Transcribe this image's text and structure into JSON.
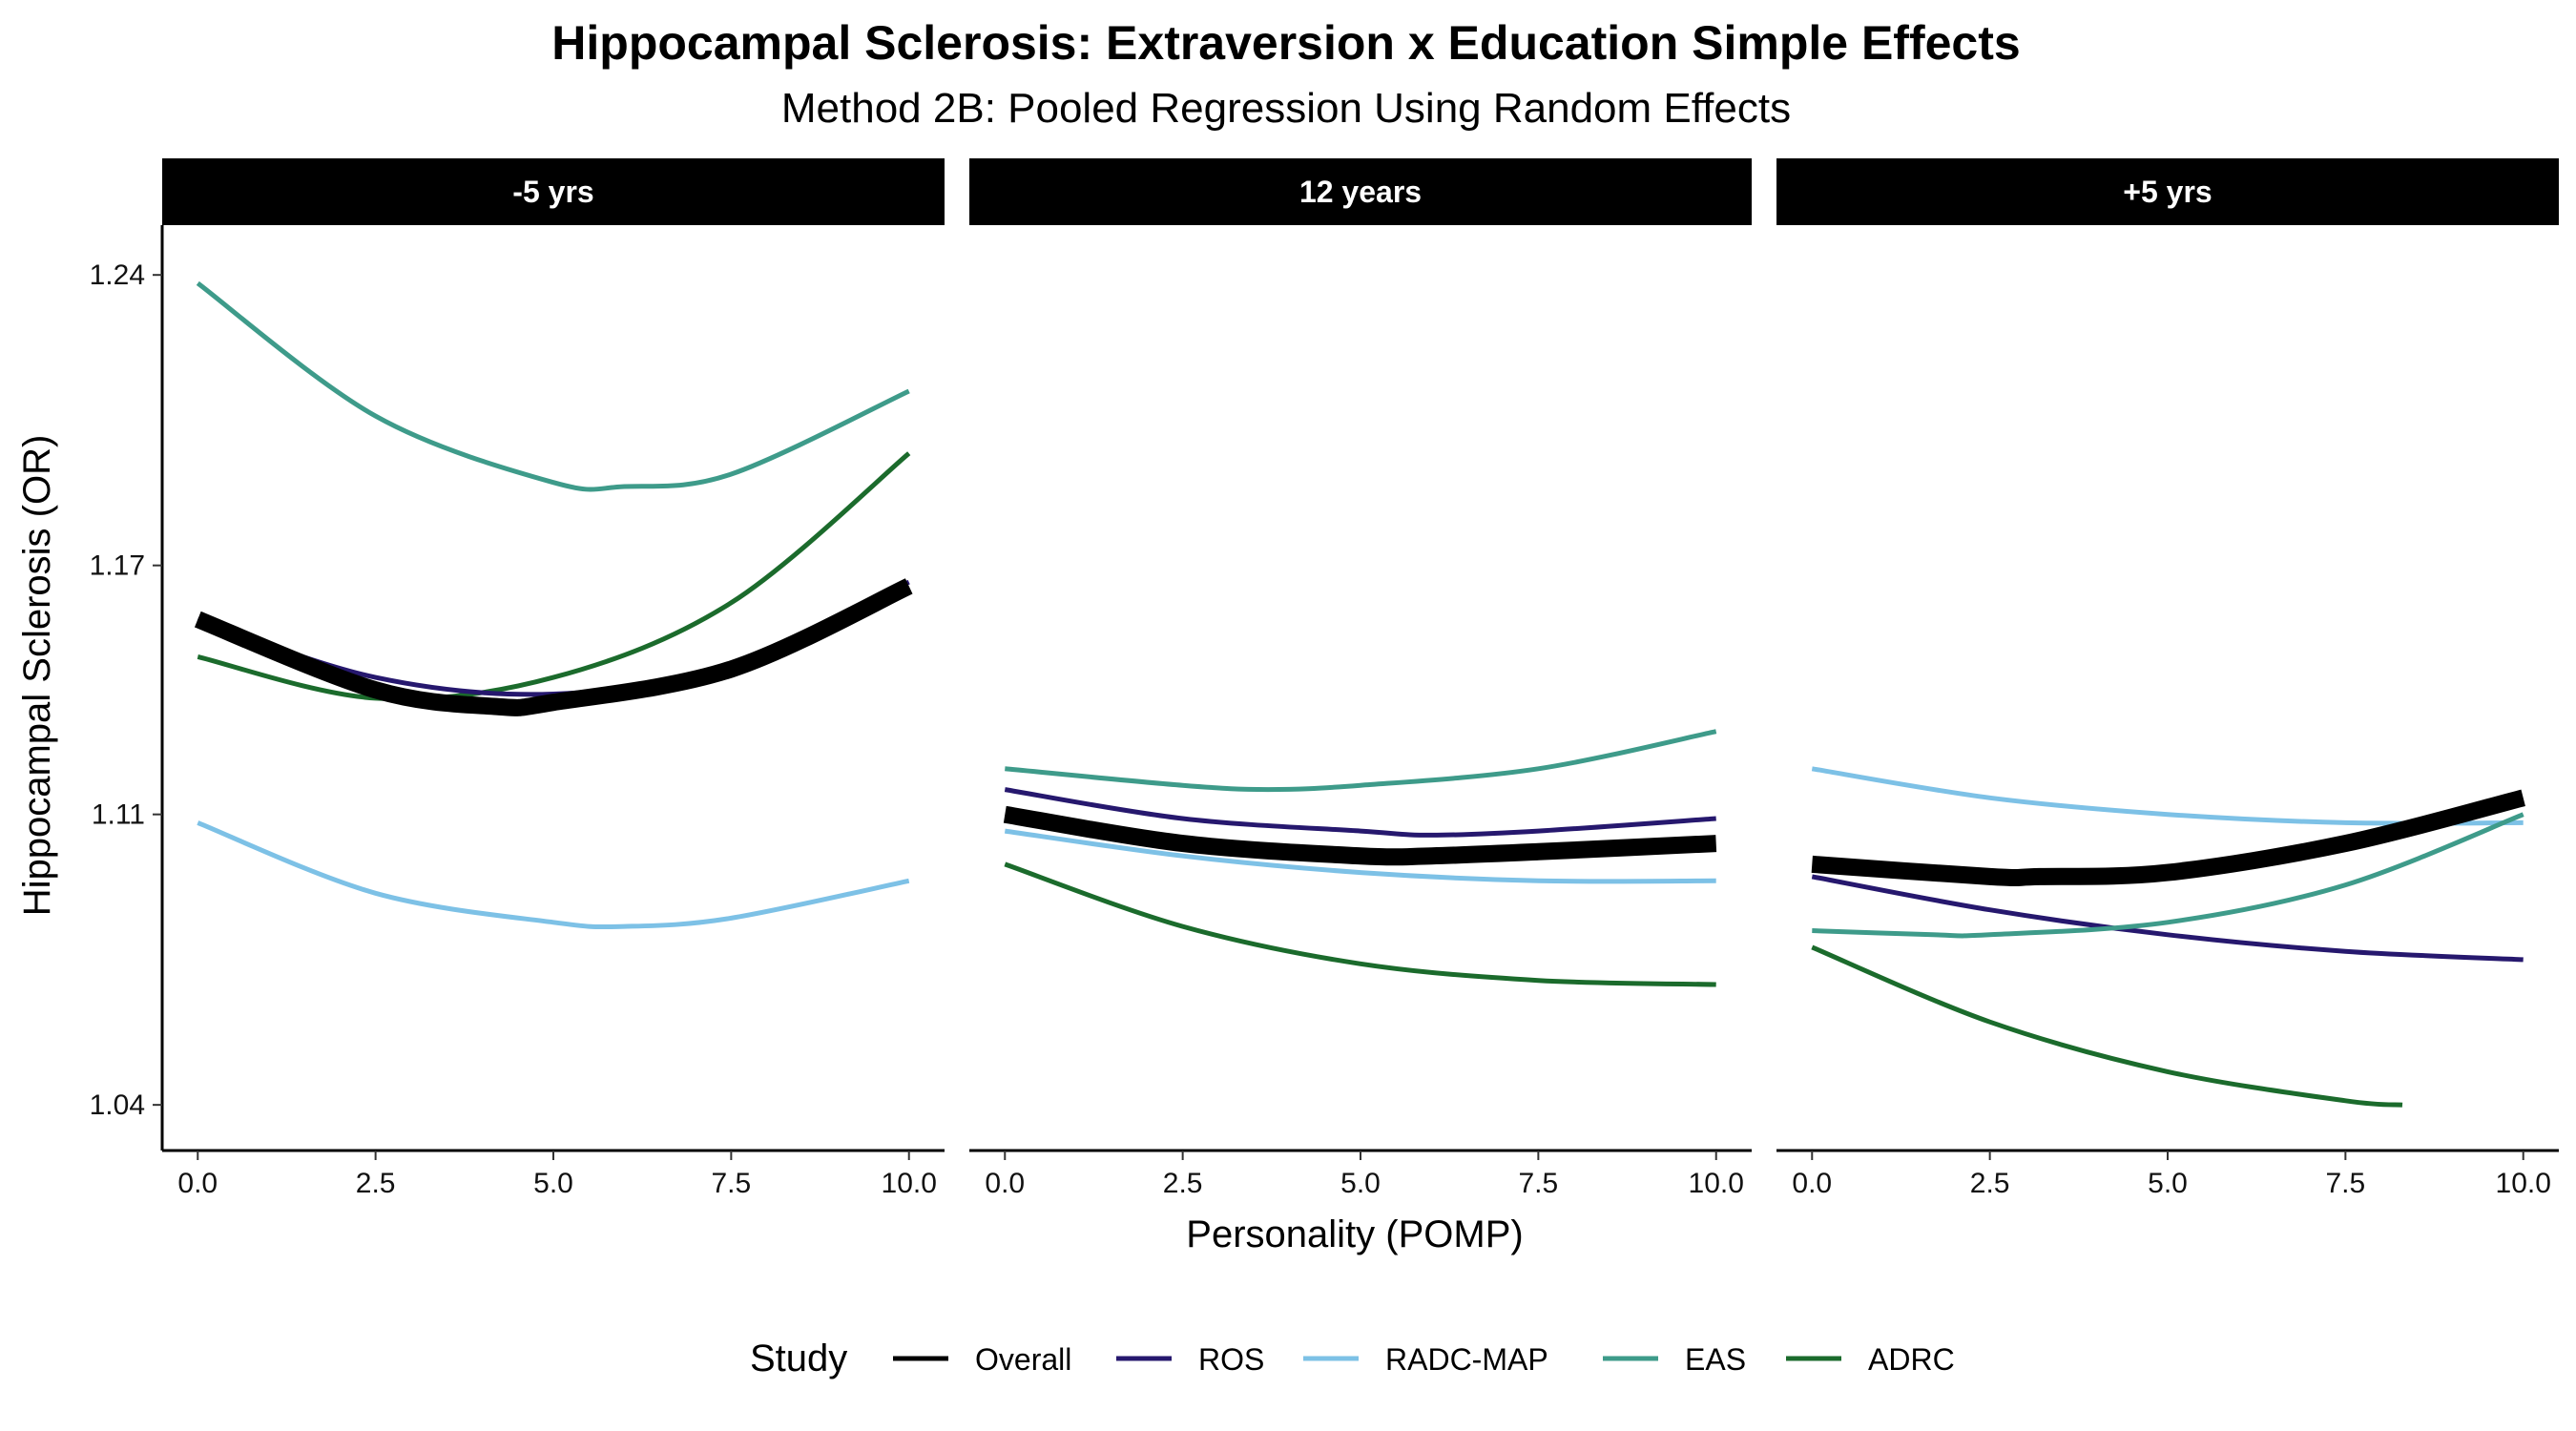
{
  "chart_data": {
    "type": "line",
    "title": "Hippocampal Sclerosis: Extraversion x Education Simple Effects",
    "subtitle": "Method 2B: Pooled Regression Using Random Effects",
    "xlabel": "Personality (POMP)",
    "ylabel": "Hippocampal Sclerosis (OR)",
    "xlim": [
      -0.5,
      10.5
    ],
    "ylim": [
      1.029,
      1.252
    ],
    "x_ticks": [
      0,
      2.5,
      5,
      7.5,
      10
    ],
    "x_tick_labels": [
      "0.0",
      "2.5",
      "5.0",
      "7.5",
      "10.0"
    ],
    "y_ticks": [
      1.04,
      1.11,
      1.17,
      1.24
    ],
    "y_tick_labels": [
      "1.04",
      "1.11",
      "1.17",
      "1.24"
    ],
    "grid": false,
    "legend": {
      "title": "Study",
      "position": "bottom",
      "entries": [
        {
          "name": "Overall",
          "color": "#000000"
        },
        {
          "name": "ROS",
          "color": "#26186E"
        },
        {
          "name": "RADC-MAP",
          "color": "#7DC1E6"
        },
        {
          "name": "EAS",
          "color": "#3E9B8A"
        },
        {
          "name": "ADRC",
          "color": "#1B6B2C"
        }
      ]
    },
    "facets": [
      {
        "label": "-5 yrs",
        "series": [
          {
            "name": "EAS",
            "x": [
              0,
              2.5,
              5,
              6,
              7.5,
              10
            ],
            "y": [
              1.238,
              1.206,
              1.19,
              1.189,
              1.192,
              1.212
            ]
          },
          {
            "name": "ADRC",
            "x": [
              0,
              2.5,
              5,
              7.5,
              10
            ],
            "y": [
              1.148,
              1.138,
              1.143,
              1.161,
              1.197
            ]
          },
          {
            "name": "ROS",
            "x": [
              0,
              2.5,
              5,
              7.5,
              10
            ],
            "y": [
              1.157,
              1.143,
              1.139,
              1.146,
              1.166
            ]
          },
          {
            "name": "RADC-MAP",
            "x": [
              0,
              2.5,
              5,
              6,
              7.5,
              10
            ],
            "y": [
              1.108,
              1.091,
              1.084,
              1.083,
              1.085,
              1.094
            ]
          },
          {
            "name": "Overall",
            "x": [
              0,
              2.5,
              4.2,
              5,
              7.5,
              10
            ],
            "y": [
              1.157,
              1.14,
              1.136,
              1.137,
              1.145,
              1.165
            ]
          }
        ]
      },
      {
        "label": "12 years",
        "series": [
          {
            "name": "EAS",
            "x": [
              0,
              2.5,
              3.7,
              5,
              7.5,
              10
            ],
            "y": [
              1.121,
              1.117,
              1.116,
              1.117,
              1.121,
              1.13
            ]
          },
          {
            "name": "ROS",
            "x": [
              0,
              2.5,
              5,
              6,
              7.5,
              10
            ],
            "y": [
              1.116,
              1.109,
              1.106,
              1.105,
              1.106,
              1.109
            ]
          },
          {
            "name": "RADC-MAP",
            "x": [
              0,
              2.5,
              5,
              7.5,
              10
            ],
            "y": [
              1.106,
              1.1,
              1.096,
              1.094,
              1.094
            ]
          },
          {
            "name": "ADRC",
            "x": [
              0,
              2.5,
              5,
              7.5,
              10
            ],
            "y": [
              1.098,
              1.083,
              1.074,
              1.07,
              1.069
            ]
          },
          {
            "name": "Overall",
            "x": [
              0,
              2.5,
              5,
              6,
              7.5,
              10
            ],
            "y": [
              1.11,
              1.103,
              1.1,
              1.1,
              1.101,
              1.103
            ]
          }
        ]
      },
      {
        "label": "+5 yrs",
        "series": [
          {
            "name": "RADC-MAP",
            "x": [
              0,
              2.5,
              5,
              7.5,
              10
            ],
            "y": [
              1.121,
              1.114,
              1.11,
              1.108,
              1.108
            ]
          },
          {
            "name": "Overall",
            "x": [
              0,
              2.5,
              3.2,
              5,
              7.5,
              10
            ],
            "y": [
              1.098,
              1.095,
              1.095,
              1.096,
              1.103,
              1.114
            ]
          },
          {
            "name": "ROS",
            "x": [
              0,
              2.5,
              5,
              7.5,
              10
            ],
            "y": [
              1.095,
              1.087,
              1.081,
              1.077,
              1.075
            ]
          },
          {
            "name": "EAS",
            "x": [
              0,
              1.7,
              2.5,
              5,
              7.5,
              10
            ],
            "y": [
              1.082,
              1.081,
              1.081,
              1.084,
              1.093,
              1.11
            ]
          },
          {
            "name": "ADRC",
            "x": [
              0,
              2.5,
              5,
              7.5,
              8.3
            ],
            "y": [
              1.078,
              1.06,
              1.048,
              1.041,
              1.04
            ]
          }
        ]
      }
    ]
  }
}
